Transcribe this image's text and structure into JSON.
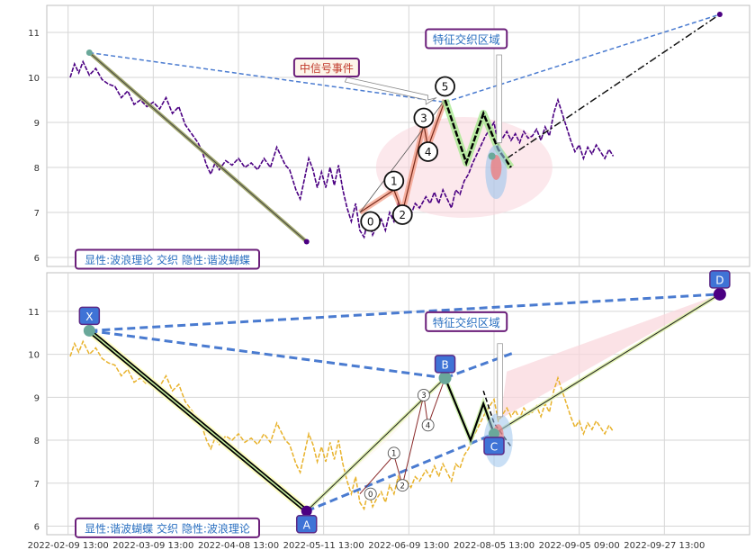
{
  "chart_data": [
    {
      "type": "line",
      "panel": "top",
      "ylim": [
        5.8,
        11.6
      ],
      "yticks": [
        6,
        7,
        8,
        9,
        10,
        11
      ],
      "x_ticks": [
        "2022-02-09 13:00",
        "2022-03-09 13:00",
        "2022-04-08 13:00",
        "2022-05-11 13:00",
        "2022-06-09 13:00",
        "2022-08-05 13:00",
        "2022-09-05 09:00",
        "2022-09-27 13:00"
      ],
      "price_color": "#4b0082",
      "price": [
        [
          0.05,
          10.0
        ],
        [
          0.15,
          10.3
        ],
        [
          0.25,
          10.1
        ],
        [
          0.35,
          10.35
        ],
        [
          0.5,
          10.05
        ],
        [
          0.65,
          10.2
        ],
        [
          0.8,
          9.95
        ],
        [
          0.95,
          9.85
        ],
        [
          1.1,
          9.8
        ],
        [
          1.25,
          9.55
        ],
        [
          1.4,
          9.7
        ],
        [
          1.55,
          9.4
        ],
        [
          1.7,
          9.5
        ],
        [
          1.85,
          9.35
        ],
        [
          2.0,
          9.45
        ],
        [
          2.15,
          9.3
        ],
        [
          2.3,
          9.55
        ],
        [
          2.45,
          9.2
        ],
        [
          2.6,
          9.35
        ],
        [
          2.75,
          8.95
        ],
        [
          2.9,
          8.75
        ],
        [
          3.05,
          8.55
        ],
        [
          3.15,
          8.35
        ],
        [
          3.25,
          8.05
        ],
        [
          3.35,
          7.85
        ],
        [
          3.45,
          8.1
        ],
        [
          3.55,
          7.95
        ],
        [
          3.7,
          8.15
        ],
        [
          3.85,
          8.05
        ],
        [
          4.0,
          8.2
        ],
        [
          4.15,
          8.0
        ],
        [
          4.3,
          8.1
        ],
        [
          4.45,
          7.95
        ],
        [
          4.6,
          8.2
        ],
        [
          4.75,
          8.0
        ],
        [
          4.9,
          8.45
        ],
        [
          5.0,
          8.25
        ],
        [
          5.1,
          8.05
        ],
        [
          5.2,
          7.95
        ],
        [
          5.35,
          7.5
        ],
        [
          5.45,
          7.3
        ],
        [
          5.55,
          7.75
        ],
        [
          5.65,
          8.2
        ],
        [
          5.75,
          7.95
        ],
        [
          5.85,
          7.55
        ],
        [
          5.95,
          7.9
        ],
        [
          6.05,
          7.55
        ],
        [
          6.15,
          8.0
        ],
        [
          6.25,
          7.6
        ],
        [
          6.35,
          8.05
        ],
        [
          6.45,
          7.5
        ],
        [
          6.55,
          7.1
        ],
        [
          6.65,
          6.8
        ],
        [
          6.75,
          7.2
        ],
        [
          6.85,
          6.6
        ],
        [
          6.95,
          6.45
        ],
        [
          7.05,
          6.9
        ],
        [
          7.15,
          6.5
        ],
        [
          7.25,
          6.7
        ],
        [
          7.35,
          6.85
        ],
        [
          7.45,
          6.6
        ],
        [
          7.55,
          7.0
        ],
        [
          7.65,
          6.8
        ],
        [
          7.75,
          7.2
        ],
        [
          7.85,
          6.95
        ],
        [
          7.95,
          7.1
        ],
        [
          8.05,
          6.95
        ],
        [
          8.15,
          7.2
        ],
        [
          8.25,
          7.1
        ],
        [
          8.4,
          7.35
        ],
        [
          8.5,
          7.2
        ],
        [
          8.6,
          7.45
        ],
        [
          8.7,
          7.2
        ],
        [
          8.8,
          7.5
        ],
        [
          8.9,
          7.3
        ],
        [
          9.0,
          7.1
        ],
        [
          9.1,
          7.5
        ],
        [
          9.2,
          7.4
        ],
        [
          9.3,
          7.7
        ],
        [
          9.4,
          7.85
        ],
        [
          9.5,
          8.1
        ],
        [
          9.6,
          8.3
        ],
        [
          9.7,
          8.5
        ],
        [
          9.8,
          8.7
        ],
        [
          9.9,
          8.85
        ],
        [
          10.0,
          9.0
        ],
        [
          10.1,
          8.5
        ],
        [
          10.2,
          8.65
        ],
        [
          10.3,
          8.8
        ],
        [
          10.4,
          8.6
        ],
        [
          10.5,
          8.75
        ],
        [
          10.6,
          8.55
        ],
        [
          10.7,
          8.8
        ],
        [
          10.8,
          8.65
        ],
        [
          10.9,
          8.7
        ],
        [
          11.0,
          8.85
        ],
        [
          11.1,
          8.6
        ],
        [
          11.2,
          8.9
        ],
        [
          11.3,
          8.7
        ],
        [
          11.4,
          9.2
        ],
        [
          11.5,
          9.5
        ],
        [
          11.6,
          9.2
        ],
        [
          11.7,
          8.9
        ],
        [
          11.8,
          8.6
        ],
        [
          11.9,
          8.35
        ],
        [
          12.0,
          8.5
        ],
        [
          12.1,
          8.2
        ],
        [
          12.2,
          8.45
        ],
        [
          12.3,
          8.3
        ],
        [
          12.4,
          8.5
        ],
        [
          12.5,
          8.35
        ],
        [
          12.6,
          8.2
        ],
        [
          12.7,
          8.4
        ],
        [
          12.8,
          8.25
        ]
      ],
      "pattern_points": [
        {
          "name": "X",
          "x": 0.5,
          "y": 10.55
        },
        {
          "name": "A",
          "x": 5.6,
          "y": 6.35
        },
        {
          "name": "B",
          "x": 8.85,
          "y": 9.45
        },
        {
          "name": "C",
          "x": 10.0,
          "y": 8.15
        },
        {
          "name": "D",
          "x": 15.3,
          "y": 11.4
        }
      ],
      "wave_points": [
        {
          "label": "0",
          "x": 6.85,
          "y": 7.0
        },
        {
          "label": "1",
          "x": 7.65,
          "y": 7.5
        },
        {
          "label": "2",
          "x": 7.85,
          "y": 7.0
        },
        {
          "label": "3",
          "x": 8.35,
          "y": 8.95
        },
        {
          "label": "4",
          "x": 8.45,
          "y": 8.45
        },
        {
          "label": "5",
          "x": 8.85,
          "y": 9.5
        }
      ],
      "annotations": {
        "signal_label": "中信号事件",
        "zone_label": "特征交织区域",
        "legend_label": "显性:波浪理论 交织 隐性:谐波蝴蝶"
      }
    },
    {
      "type": "line",
      "panel": "bottom",
      "ylim": [
        5.8,
        11.9
      ],
      "yticks": [
        6,
        7,
        8,
        9,
        10,
        11
      ],
      "price_color": "#e8b22b",
      "pattern_points": [
        {
          "name": "X",
          "x": 0.5,
          "y": 10.55
        },
        {
          "name": "A",
          "x": 5.6,
          "y": 6.35
        },
        {
          "name": "B",
          "x": 8.85,
          "y": 9.45
        },
        {
          "name": "C",
          "x": 10.0,
          "y": 8.15
        },
        {
          "name": "D",
          "x": 15.3,
          "y": 11.4
        }
      ],
      "wave_points": [
        {
          "label": "0",
          "x": 6.85,
          "y": 6.75
        },
        {
          "label": "1",
          "x": 7.65,
          "y": 7.65
        },
        {
          "label": "2",
          "x": 7.85,
          "y": 6.95
        },
        {
          "label": "3",
          "x": 8.35,
          "y": 9.05
        },
        {
          "label": "4",
          "x": 8.45,
          "y": 8.35
        }
      ],
      "annotations": {
        "zone_label": "特征交织区域",
        "legend_label": "显性:谐波蝴蝶 交织 隐性:波浪理论"
      }
    }
  ]
}
